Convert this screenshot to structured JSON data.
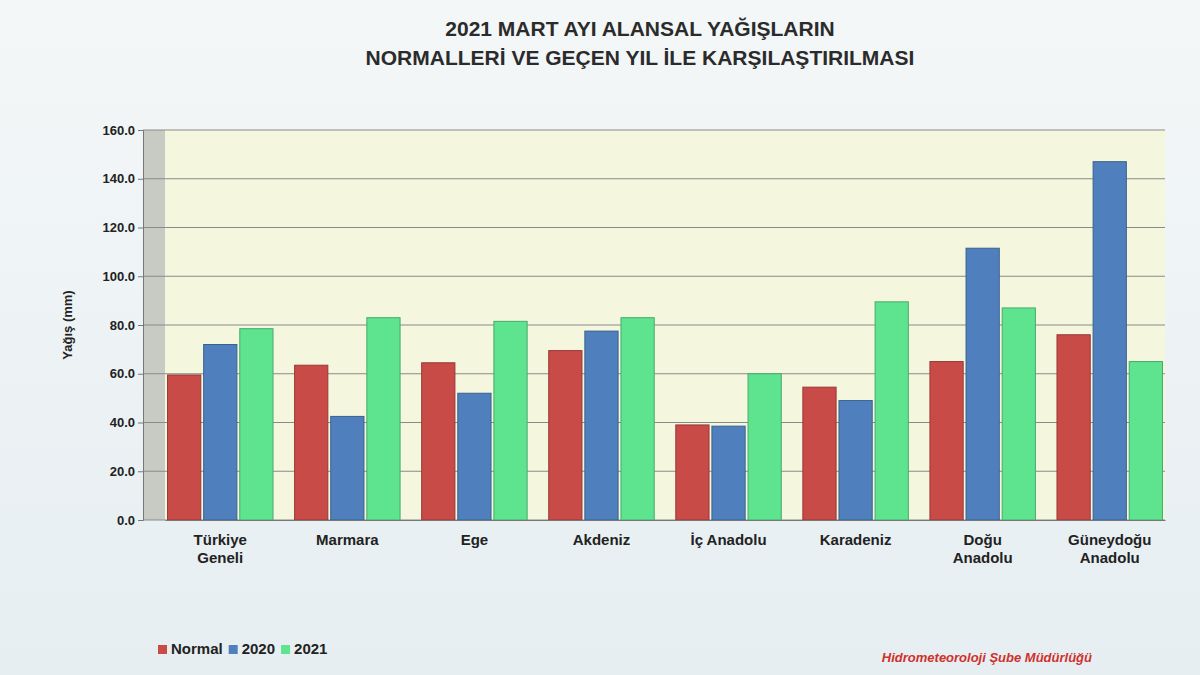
{
  "chart_data": {
    "type": "bar",
    "title": "2021 MART AYI ALANSAL YAĞIŞLARIN\nNORMALLERİ VE GEÇEN YIL İLE KARŞILAŞTIRILMASI",
    "y_label": "Yağış (mm)",
    "annotation": "Hidrometeoroloji Şube Müdürlüğü",
    "categories": [
      "Türkiye\nGeneli",
      "Marmara",
      "Ege",
      "Akdeniz",
      "İç Anadolu",
      "Karadeniz",
      "Doğu\nAnadolu",
      "Güneydoğu\nAnadolu"
    ],
    "series": [
      {
        "name": "Normal",
        "color": "#c94b48",
        "values": [
          59.5,
          63.5,
          64.5,
          69.5,
          39,
          54.5,
          65,
          76
        ]
      },
      {
        "name": "2020",
        "color": "#4f80bd",
        "values": [
          72,
          42.5,
          52,
          77.5,
          38.5,
          49,
          111.5,
          147
        ]
      },
      {
        "name": "2021",
        "color": "#5ee38e",
        "values": [
          78.5,
          83,
          81.5,
          83,
          60,
          89.5,
          87,
          65
        ]
      }
    ],
    "ylim": [
      0,
      160
    ],
    "yticks": [
      {
        "value": 0,
        "label": "0.0"
      },
      {
        "value": 20,
        "label": "20.0"
      },
      {
        "value": 40,
        "label": "40.0"
      },
      {
        "value": 60,
        "label": "60.0"
      },
      {
        "value": 80,
        "label": "80.0"
      },
      {
        "value": 100,
        "label": "100.0"
      },
      {
        "value": 120,
        "label": "120.0"
      },
      {
        "value": 140,
        "label": "140.0"
      },
      {
        "value": 160,
        "label": "160.0"
      }
    ],
    "grid": true,
    "legend": "bottom left"
  }
}
